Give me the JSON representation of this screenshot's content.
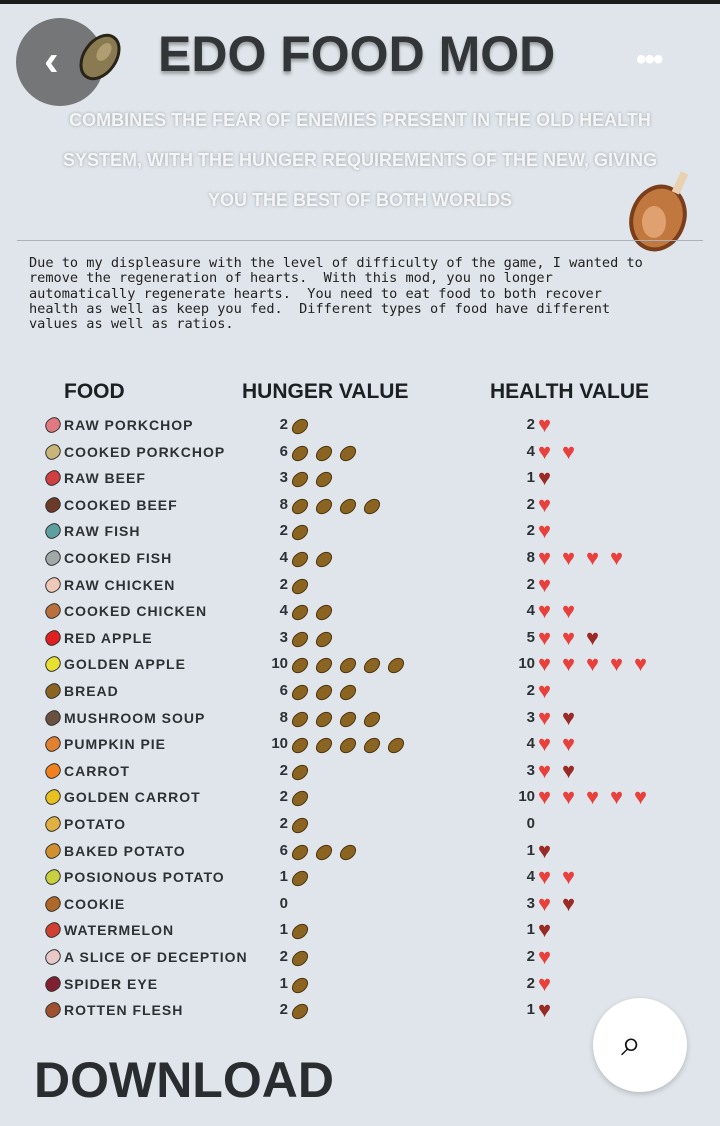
{
  "header": {
    "title": "EDO FOOD MOD",
    "back_icon": "chevron-left-icon",
    "more_icon": "more-horizontal-icon",
    "more_label": "•••",
    "back_label": "‹"
  },
  "subtitle_lines": [
    "COMBINES THE FEAR OF ENEMIES PRESENT IN THE OLD HEALTH",
    "SYSTEM, WITH THE HUNGER REQUIREMENTS OF THE NEW, GIVING",
    "YOU THE BEST OF BOTH WORLDS"
  ],
  "intro": "Due to my displeasure with the level of difficulty of the game, I wanted to\nremove the regeneration of hearts.  With this mod, you no longer\nautomatically regenerate hearts.  You need to eat food to both recover\nhealth as well as keep you fed.  Different types of food have different\nvalues as well as ratios.",
  "table": {
    "headers": {
      "food": "FOOD",
      "hunger": "HUNGER VALUE",
      "health": "HEALTH VALUE"
    },
    "rows": [
      {
        "name": "RAW PORKCHOP",
        "hunger": 2,
        "health": 2,
        "color": "#e07a80"
      },
      {
        "name": "COOKED PORKCHOP",
        "hunger": 6,
        "health": 4,
        "color": "#c9b47a"
      },
      {
        "name": "RAW BEEF",
        "hunger": 3,
        "health": 1,
        "color": "#d04040"
      },
      {
        "name": "COOKED BEEF",
        "hunger": 8,
        "health": 2,
        "color": "#6b3a28"
      },
      {
        "name": "RAW FISH",
        "hunger": 2,
        "health": 2,
        "color": "#5ea0a0"
      },
      {
        "name": "COOKED FISH",
        "hunger": 4,
        "health": 8,
        "color": "#a0a8a8"
      },
      {
        "name": "RAW CHICKEN",
        "hunger": 2,
        "health": 2,
        "color": "#f0c8b8"
      },
      {
        "name": "COOKED CHICKEN",
        "hunger": 4,
        "health": 4,
        "color": "#b8703c"
      },
      {
        "name": "RED APPLE",
        "hunger": 3,
        "health": 5,
        "color": "#e02020"
      },
      {
        "name": "GOLDEN APPLE",
        "hunger": 10,
        "health": 10,
        "color": "#e8e030"
      },
      {
        "name": "BREAD",
        "hunger": 6,
        "health": 2,
        "color": "#8a6420"
      },
      {
        "name": "MUSHROOM SOUP",
        "hunger": 8,
        "health": 3,
        "color": "#6a5040"
      },
      {
        "name": "PUMPKIN PIE",
        "hunger": 10,
        "health": 4,
        "color": "#e08030"
      },
      {
        "name": "CARROT",
        "hunger": 2,
        "health": 3,
        "color": "#f08020"
      },
      {
        "name": "GOLDEN CARROT",
        "hunger": 2,
        "health": 10,
        "color": "#e8c020"
      },
      {
        "name": "POTATO",
        "hunger": 2,
        "health": 0,
        "color": "#e0b040"
      },
      {
        "name": "BAKED POTATO",
        "hunger": 6,
        "health": 1,
        "color": "#d09030"
      },
      {
        "name": "POSIONOUS POTATO",
        "hunger": 1,
        "health": 4,
        "color": "#c8d040"
      },
      {
        "name": "COOKIE",
        "hunger": 0,
        "health": 3,
        "color": "#b06828"
      },
      {
        "name": "WATERMELON",
        "hunger": 1,
        "health": 1,
        "color": "#d04030"
      },
      {
        "name": "A SLICE OF DECEPTION",
        "hunger": 2,
        "health": 2,
        "color": "#e8c8c8"
      },
      {
        "name": "SPIDER EYE",
        "hunger": 1,
        "health": 2,
        "color": "#802030"
      },
      {
        "name": "ROTTEN FLESH",
        "hunger": 2,
        "health": 1,
        "color": "#a05030"
      }
    ]
  },
  "footer": {
    "download": "DOWNLOAD",
    "lens_icon": "visual-search-icon",
    "lens_label": "⌕"
  },
  "colors": {
    "background": "#dfe5ea",
    "heart": "#e8403c",
    "half_heart": "#9a2a26",
    "drumstick": "#8a6420"
  }
}
